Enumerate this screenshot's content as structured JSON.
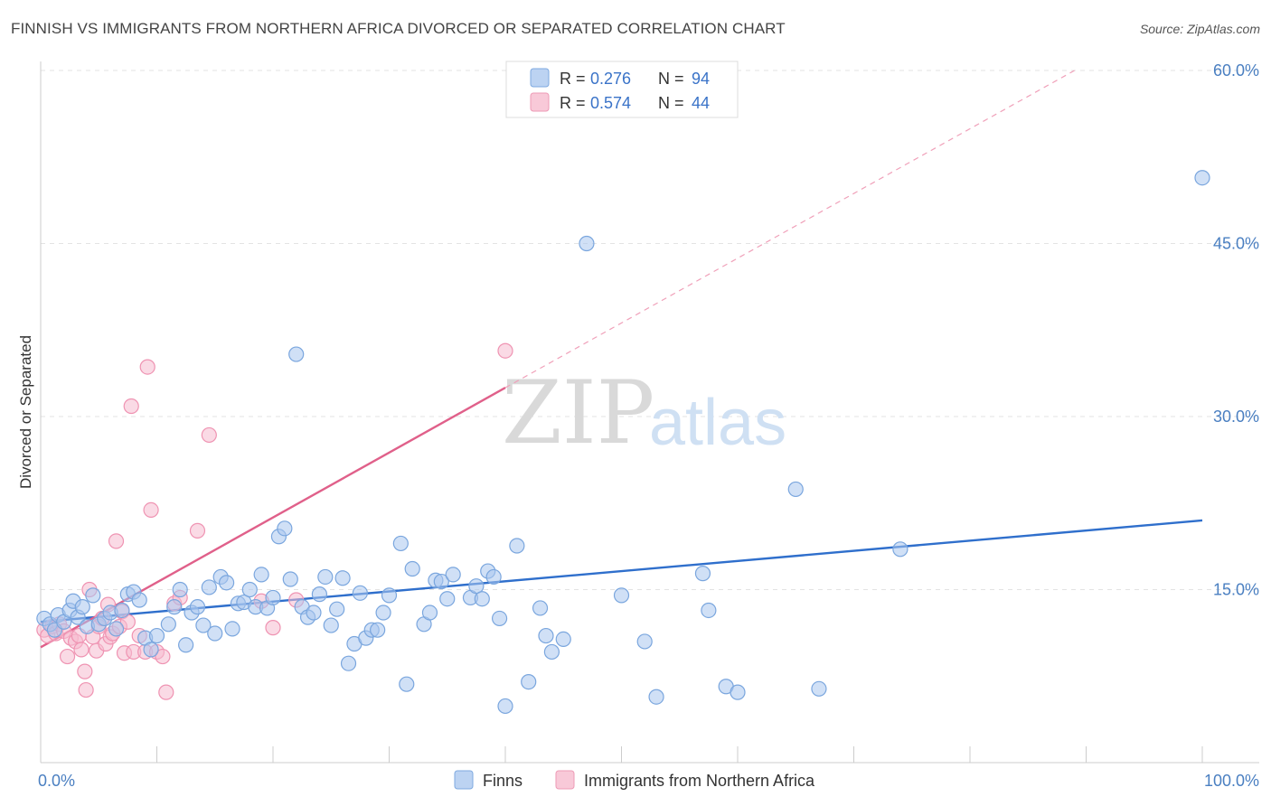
{
  "title": "FINNISH VS IMMIGRANTS FROM NORTHERN AFRICA DIVORCED OR SEPARATED CORRELATION CHART",
  "source": "Source: ZipAtlas.com",
  "watermark": {
    "zip": "ZIP",
    "atlas": "atlas"
  },
  "colors": {
    "finns": "#8fb6e8",
    "finns_line": "#2f6fcc",
    "immigrants": "#f3a8c0",
    "immigrants_line": "#e0608a"
  },
  "legend": {
    "rows": [
      {
        "r_label": "R = ",
        "r_value": "0.276",
        "n_label": "N = ",
        "n_value": "94"
      },
      {
        "r_label": "R = ",
        "r_value": "0.574",
        "n_label": "N = ",
        "n_value": "44"
      }
    ]
  },
  "bottom_legend": [
    "Finns",
    "Immigrants from Northern Africa"
  ],
  "chart_data": {
    "type": "scatter",
    "ylabel": "Divorced or Separated",
    "xlim": [
      0,
      100
    ],
    "ylim": [
      0,
      60
    ],
    "x_tick_labels": [
      "0.0%",
      "100.0%"
    ],
    "y_ticks": [
      15,
      30,
      45,
      60
    ],
    "y_tick_labels": [
      "15.0%",
      "30.0%",
      "45.0%",
      "60.0%"
    ],
    "grid": true,
    "series": [
      {
        "name": "Finns",
        "trend": {
          "x": [
            0,
            100
          ],
          "y": [
            12.2,
            21.0
          ]
        },
        "points": [
          [
            0.3,
            12.5
          ],
          [
            0.8,
            12.0
          ],
          [
            1.2,
            11.5
          ],
          [
            1.5,
            12.8
          ],
          [
            2.0,
            12.2
          ],
          [
            2.5,
            13.2
          ],
          [
            2.8,
            14.0
          ],
          [
            3.2,
            12.6
          ],
          [
            3.6,
            13.5
          ],
          [
            4.0,
            11.8
          ],
          [
            4.5,
            14.5
          ],
          [
            5.0,
            12.0
          ],
          [
            5.5,
            12.5
          ],
          [
            6.0,
            13.0
          ],
          [
            6.5,
            11.6
          ],
          [
            7.0,
            13.2
          ],
          [
            7.5,
            14.6
          ],
          [
            8.0,
            14.8
          ],
          [
            8.5,
            14.1
          ],
          [
            9.0,
            10.8
          ],
          [
            9.5,
            9.8
          ],
          [
            10.0,
            11.0
          ],
          [
            11.0,
            12.0
          ],
          [
            11.5,
            13.5
          ],
          [
            12.0,
            15.0
          ],
          [
            12.5,
            10.2
          ],
          [
            13.0,
            13.0
          ],
          [
            13.5,
            13.5
          ],
          [
            14.0,
            11.9
          ],
          [
            14.5,
            15.2
          ],
          [
            15.0,
            11.2
          ],
          [
            15.5,
            16.1
          ],
          [
            16.0,
            15.6
          ],
          [
            16.5,
            11.6
          ],
          [
            17.0,
            13.8
          ],
          [
            17.5,
            13.9
          ],
          [
            18.0,
            15.0
          ],
          [
            18.5,
            13.5
          ],
          [
            19.0,
            16.3
          ],
          [
            19.5,
            13.4
          ],
          [
            20.0,
            14.3
          ],
          [
            20.5,
            19.6
          ],
          [
            21.0,
            20.3
          ],
          [
            21.5,
            15.9
          ],
          [
            22.0,
            35.4
          ],
          [
            22.5,
            13.5
          ],
          [
            23.0,
            12.6
          ],
          [
            23.5,
            13.0
          ],
          [
            24.0,
            14.6
          ],
          [
            24.5,
            16.1
          ],
          [
            25.0,
            11.9
          ],
          [
            25.5,
            13.3
          ],
          [
            26.0,
            16.0
          ],
          [
            26.5,
            8.6
          ],
          [
            27.0,
            10.3
          ],
          [
            27.5,
            14.7
          ],
          [
            28.0,
            10.8
          ],
          [
            28.5,
            11.5
          ],
          [
            29.0,
            11.5
          ],
          [
            29.5,
            13.0
          ],
          [
            30.0,
            14.5
          ],
          [
            31.0,
            19.0
          ],
          [
            31.5,
            6.8
          ],
          [
            32.0,
            16.8
          ],
          [
            33.0,
            12.0
          ],
          [
            33.5,
            13.0
          ],
          [
            34.0,
            15.8
          ],
          [
            34.5,
            15.7
          ],
          [
            35.0,
            14.2
          ],
          [
            35.5,
            16.3
          ],
          [
            37.0,
            14.3
          ],
          [
            37.5,
            15.3
          ],
          [
            38.0,
            14.2
          ],
          [
            38.5,
            16.6
          ],
          [
            39.0,
            16.1
          ],
          [
            39.5,
            12.5
          ],
          [
            40.0,
            4.9
          ],
          [
            41.0,
            18.8
          ],
          [
            42.0,
            7.0
          ],
          [
            43.0,
            13.4
          ],
          [
            43.5,
            11.0
          ],
          [
            44.0,
            9.6
          ],
          [
            45.0,
            10.7
          ],
          [
            47.0,
            45.0
          ],
          [
            50.0,
            14.5
          ],
          [
            52.0,
            10.5
          ],
          [
            53.0,
            5.7
          ],
          [
            57.0,
            16.4
          ],
          [
            57.5,
            13.2
          ],
          [
            59.0,
            6.6
          ],
          [
            60.0,
            6.1
          ],
          [
            65.0,
            23.7
          ],
          [
            67.0,
            6.4
          ],
          [
            74.0,
            18.5
          ],
          [
            100.0,
            50.7
          ]
        ]
      },
      {
        "name": "Immigrants from Northern Africa",
        "trend": {
          "x": [
            0,
            40
          ],
          "y": [
            10.0,
            32.5
          ]
        },
        "trend_extension": {
          "x": [
            40,
            89
          ],
          "y": [
            32.5,
            60.0
          ]
        },
        "points": [
          [
            0.3,
            11.5
          ],
          [
            0.6,
            11.0
          ],
          [
            1.0,
            11.8
          ],
          [
            1.3,
            11.2
          ],
          [
            1.6,
            12.0
          ],
          [
            2.0,
            11.4
          ],
          [
            2.3,
            9.2
          ],
          [
            2.6,
            10.8
          ],
          [
            3.0,
            10.5
          ],
          [
            3.3,
            11.0
          ],
          [
            3.5,
            9.8
          ],
          [
            3.8,
            7.9
          ],
          [
            3.9,
            6.3
          ],
          [
            4.2,
            15.0
          ],
          [
            4.5,
            10.9
          ],
          [
            4.8,
            9.7
          ],
          [
            5.0,
            11.8
          ],
          [
            5.3,
            12.5
          ],
          [
            5.6,
            10.3
          ],
          [
            5.8,
            13.7
          ],
          [
            6.0,
            10.9
          ],
          [
            6.2,
            11.2
          ],
          [
            6.5,
            19.2
          ],
          [
            6.8,
            11.8
          ],
          [
            7.0,
            13.1
          ],
          [
            7.2,
            9.5
          ],
          [
            7.5,
            12.2
          ],
          [
            7.8,
            30.9
          ],
          [
            8.0,
            9.6
          ],
          [
            8.5,
            11.0
          ],
          [
            9.0,
            9.6
          ],
          [
            9.2,
            34.3
          ],
          [
            9.5,
            21.9
          ],
          [
            10.0,
            9.6
          ],
          [
            10.5,
            9.2
          ],
          [
            10.8,
            6.1
          ],
          [
            11.5,
            13.8
          ],
          [
            12.0,
            14.3
          ],
          [
            13.5,
            20.1
          ],
          [
            14.5,
            28.4
          ],
          [
            19.0,
            14.0
          ],
          [
            20.0,
            11.7
          ],
          [
            22.0,
            14.1
          ],
          [
            40.0,
            35.7
          ]
        ]
      }
    ]
  }
}
